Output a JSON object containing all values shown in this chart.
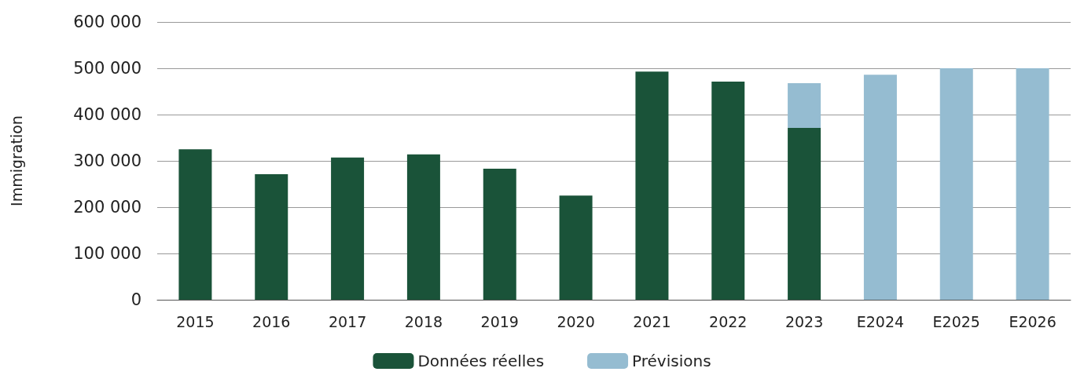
{
  "chart_data": {
    "type": "bar",
    "ylabel": "Immigration",
    "stacked": true,
    "grid": "y",
    "legend": "bottom",
    "categories": [
      "2015",
      "2016",
      "2017",
      "2018",
      "2019",
      "2020",
      "2021",
      "2022",
      "2023",
      "E2024",
      "E2025",
      "E2026"
    ],
    "series": [
      {
        "name": "Données réelles",
        "color": "#1a5339",
        "values": [
          325000,
          271000,
          307000,
          314000,
          283000,
          225000,
          493000,
          471000,
          371000,
          null,
          null,
          null
        ]
      },
      {
        "name": "Prévisions",
        "color": "#95bcd1",
        "values": [
          null,
          null,
          null,
          null,
          null,
          null,
          null,
          null,
          97000,
          486000,
          500000,
          500000
        ]
      }
    ],
    "ylim": [
      0,
      600000
    ],
    "yticks": [
      {
        "value": 0,
        "label": "0"
      },
      {
        "value": 100000,
        "label": "100 000"
      },
      {
        "value": 200000,
        "label": "200 000"
      },
      {
        "value": 300000,
        "label": "300 000"
      },
      {
        "value": 400000,
        "label": "400 000"
      },
      {
        "value": 500000,
        "label": "500 000"
      },
      {
        "value": 600000,
        "label": "600 000"
      }
    ]
  }
}
